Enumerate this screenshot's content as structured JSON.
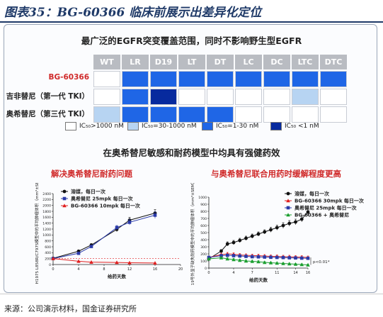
{
  "page_title": "图表35：BG-60366 临床前展示出差异化定位",
  "heatmap_title": "最广泛的EGFR突变覆盖范围，同时不影响野生型EGFR",
  "section_title": "在奥希替尼敏感和耐药模型中均具有强健药效",
  "colors": {
    "c0": "#ffffff",
    "c1": "#b7d4f2",
    "c2": "#1f66e6",
    "c3": "#072a9e"
  },
  "heatmap": {
    "columns": [
      "WT",
      "LR",
      "D19",
      "LT",
      "DT",
      "LC",
      "DC",
      "LTC",
      "DTC"
    ],
    "rows": [
      {
        "label": "BG-60366",
        "label_color": "#d02a2a",
        "levels": [
          0,
          2,
          2,
          2,
          2,
          2,
          2,
          2,
          2
        ]
      },
      {
        "label": "吉非替尼（第一代 TKI）",
        "label_color": "#222222",
        "levels": [
          0,
          2,
          3,
          0,
          0,
          0,
          0,
          1,
          0
        ]
      },
      {
        "label": "奥希替尼（第三代 TKI）",
        "label_color": "#222222",
        "levels": [
          1,
          2,
          2,
          2,
          2,
          0,
          0,
          0,
          0
        ]
      }
    ],
    "legend": [
      {
        "label": "IC₅₀>1000 nM",
        "level": 0
      },
      {
        "label": "IC₅₀=30-1000 nM",
        "level": 1
      },
      {
        "label": "IC₅₀=1-30 nM",
        "level": 2
      },
      {
        "label": "IC₅₀ <1 nM",
        "level": 3
      }
    ]
  },
  "chart_data": [
    {
      "type": "line",
      "subtitle": "解决奥希替尼耐药问题",
      "xlabel": "给药天数",
      "ylabel": "H1975 L858R/C797S模型中的平均肿瘤体积（mm³±SEM）",
      "xlim": [
        0,
        20
      ],
      "ylim": [
        0,
        2400
      ],
      "xticks": [
        0,
        4,
        8,
        12,
        16,
        20
      ],
      "yticks": [
        0,
        200,
        400,
        600,
        800,
        1000,
        1200,
        1400,
        1600,
        1800,
        2000,
        2200,
        2400
      ],
      "series": [
        {
          "name": "溶媒，每日一次",
          "color": "#111111",
          "marker": "circle",
          "x": [
            0,
            4,
            6,
            10,
            12,
            16
          ],
          "y": [
            210,
            450,
            660,
            1190,
            1500,
            1740
          ],
          "err": [
            15,
            30,
            45,
            80,
            100,
            120
          ]
        },
        {
          "name": "奥希替尼 25mpk 每日一次",
          "color": "#2a3aa8",
          "marker": "square",
          "x": [
            0,
            4,
            6,
            10,
            12,
            16
          ],
          "y": [
            200,
            380,
            610,
            1250,
            1430,
            1670
          ],
          "err": [
            15,
            30,
            40,
            70,
            90,
            110
          ]
        },
        {
          "name": "BG-60366 10mpk 每日一次",
          "color": "#e02020",
          "marker": "triangle",
          "x": [
            0,
            4,
            6,
            10,
            12,
            16
          ],
          "y": [
            200,
            110,
            80,
            70,
            60,
            50
          ],
          "err": [
            10,
            10,
            8,
            8,
            8,
            8
          ]
        }
      ]
    },
    {
      "type": "line",
      "subtitle": "与奥希替尼联合用药时缓解程度更高",
      "xlabel": "给药天数",
      "ylabel": "19号外显子缺失耐药模型中的平均肿瘤体积（mm³±SEM）",
      "xlim": [
        0,
        16
      ],
      "ylim": [
        0,
        1000
      ],
      "xticks": [
        0,
        4,
        7,
        11,
        14,
        16
      ],
      "yticks": [
        0,
        100,
        200,
        300,
        400,
        500,
        600,
        700,
        800,
        900,
        1000
      ],
      "annotation": "p<0.01*",
      "series": [
        {
          "name": "溶媒，每日一次",
          "color": "#111111",
          "marker": "circle",
          "x": [
            0,
            2,
            3,
            4,
            5,
            6,
            7,
            8,
            9,
            10,
            11,
            12,
            13,
            14,
            15,
            16
          ],
          "y": [
            130,
            240,
            340,
            360,
            390,
            420,
            450,
            480,
            510,
            540,
            570,
            600,
            630,
            650,
            690,
            790
          ],
          "err": [
            10,
            20,
            30,
            30,
            30,
            30,
            30,
            30,
            30,
            35,
            35,
            40,
            40,
            40,
            40,
            50
          ]
        },
        {
          "name": "BG-60366 30mpk 每日一次",
          "color": "#e02020",
          "marker": "triangle",
          "x": [
            0,
            2,
            3,
            4,
            5,
            6,
            7,
            8,
            9,
            10,
            11,
            12,
            13,
            14,
            15,
            16
          ],
          "y": [
            150,
            190,
            200,
            195,
            185,
            180,
            175,
            175,
            170,
            165,
            165,
            160,
            160,
            155,
            155,
            150
          ],
          "err": [
            10,
            20,
            20,
            20,
            20,
            20,
            20,
            20,
            20,
            20,
            20,
            20,
            20,
            20,
            20,
            20
          ]
        },
        {
          "name": "奥希替尼 25mpk 每日一次",
          "color": "#2a3aa8",
          "marker": "square",
          "x": [
            0,
            2,
            3,
            4,
            5,
            6,
            7,
            8,
            9,
            10,
            11,
            12,
            13,
            14,
            15,
            16
          ],
          "y": [
            150,
            175,
            180,
            175,
            170,
            165,
            160,
            158,
            155,
            152,
            150,
            148,
            145,
            143,
            140,
            138
          ],
          "err": [
            10,
            15,
            15,
            15,
            15,
            15,
            15,
            15,
            15,
            15,
            15,
            15,
            15,
            15,
            15,
            15
          ]
        },
        {
          "name": "BG-60366 + 奥希替尼",
          "color": "#1a9e2e",
          "marker": "triangle",
          "x": [
            0,
            2,
            3,
            4,
            5,
            6,
            7,
            8,
            9,
            10,
            11,
            12,
            13,
            14,
            15,
            16
          ],
          "y": [
            130,
            145,
            130,
            120,
            110,
            100,
            95,
            90,
            80,
            75,
            70,
            65,
            60,
            55,
            50,
            45
          ],
          "err": [
            10,
            15,
            15,
            15,
            15,
            15,
            15,
            12,
            12,
            12,
            12,
            10,
            10,
            10,
            10,
            10
          ]
        }
      ]
    }
  ],
  "footer": "来源：公司演示材料，国金证券研究所"
}
